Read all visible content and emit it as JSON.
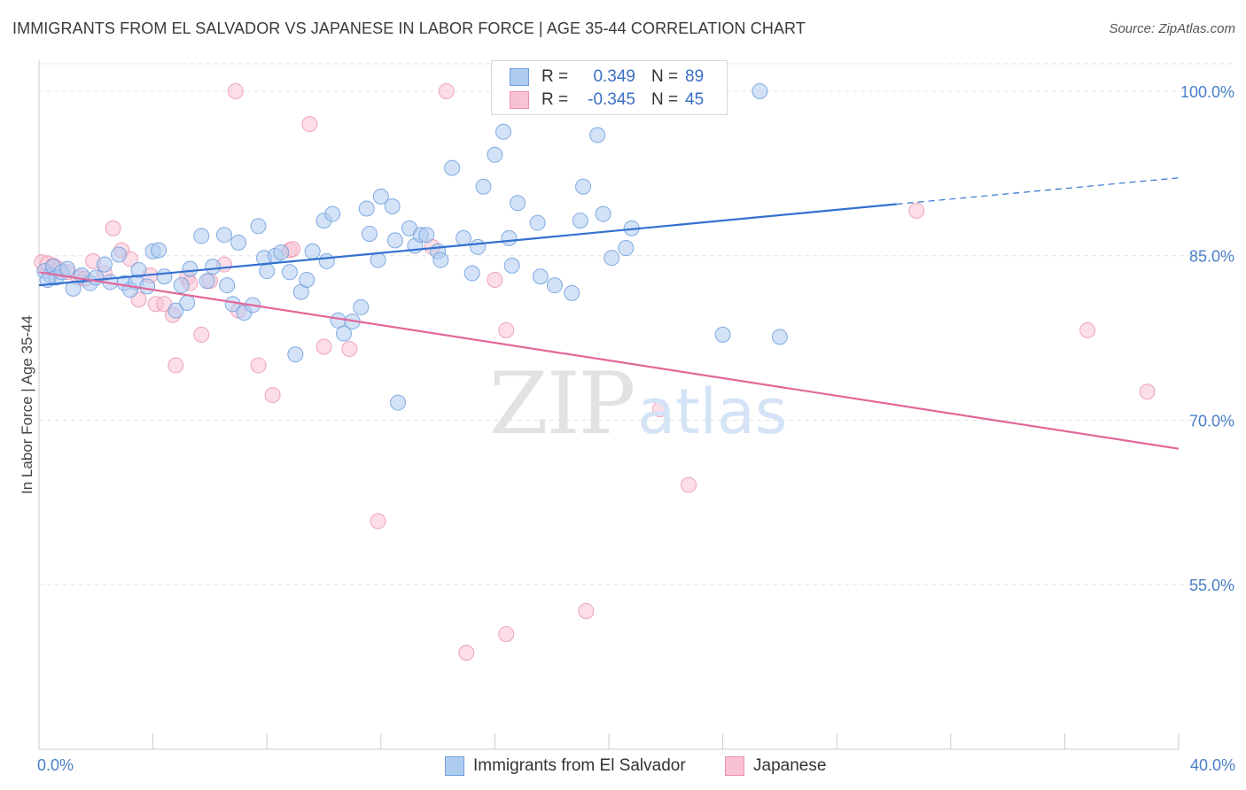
{
  "title": "IMMIGRANTS FROM EL SALVADOR VS JAPANESE IN LABOR FORCE | AGE 35-44 CORRELATION CHART",
  "source": "Source: ZipAtlas.com",
  "watermark": {
    "zip": "ZIP",
    "atlas": "atlas"
  },
  "legend": {
    "rows": [
      {
        "r_label": "R =",
        "r_value": "0.349",
        "n_label": "N =",
        "n_value": "89"
      },
      {
        "r_label": "R =",
        "r_value": "-0.345",
        "n_label": "N =",
        "n_value": "45"
      }
    ]
  },
  "bottom_legend": {
    "blue": "Immigrants from El Salvador",
    "pink": "Japanese"
  },
  "colors": {
    "blue_fill": "#aecbf0",
    "blue_stroke": "#6f9fdc",
    "blue_line": "#3371d0",
    "pink_fill": "#f8c2d4",
    "pink_stroke": "#ec8fae",
    "pink_line": "#e2679a",
    "grid": "#e3e3e3",
    "tick_label": "#4a7fc8"
  },
  "chart_data": {
    "type": "scatter",
    "title": "IMMIGRANTS FROM EL SALVADOR VS JAPANESE IN LABOR FORCE | AGE 35-44 CORRELATION CHART",
    "xlabel": "",
    "ylabel": "In Labor Force | Age 35-44",
    "xlim": [
      0,
      40
    ],
    "ylim": [
      40,
      102.5
    ],
    "y_ticks": [
      55,
      70,
      85,
      100
    ],
    "y_tick_labels": [
      "55.0%",
      "70.0%",
      "85.0%",
      "100.0%"
    ],
    "x_tick_labels": [
      "0.0%",
      "40.0%"
    ],
    "grid": true,
    "legend_position": "top-center",
    "series": [
      {
        "name": "Immigrants from El Salvador",
        "color": "#6f9fdc",
        "trend": {
          "x": [
            0,
            30.1
          ],
          "y": [
            82.3,
            89.7
          ],
          "dashed_to": {
            "x": 40,
            "y": 92.1
          }
        },
        "points": [
          [
            0.2,
            83.6
          ],
          [
            0.4,
            83.2
          ],
          [
            0.5,
            84.0
          ],
          [
            0.6,
            83.0
          ],
          [
            0.8,
            83.5
          ],
          [
            1.0,
            83.8
          ],
          [
            1.2,
            82.0
          ],
          [
            1.5,
            83.2
          ],
          [
            1.8,
            82.5
          ],
          [
            2.0,
            83.0
          ],
          [
            2.3,
            84.2
          ],
          [
            2.5,
            82.6
          ],
          [
            2.8,
            85.1
          ],
          [
            3.0,
            82.5
          ],
          [
            3.2,
            81.9
          ],
          [
            3.4,
            82.6
          ],
          [
            3.5,
            83.7
          ],
          [
            3.8,
            82.2
          ],
          [
            4.0,
            85.4
          ],
          [
            4.2,
            85.5
          ],
          [
            4.4,
            83.1
          ],
          [
            4.8,
            80.0
          ],
          [
            5.0,
            82.3
          ],
          [
            5.2,
            80.7
          ],
          [
            5.3,
            83.8
          ],
          [
            5.7,
            86.8
          ],
          [
            5.9,
            82.7
          ],
          [
            6.1,
            84.0
          ],
          [
            6.5,
            86.9
          ],
          [
            6.6,
            82.3
          ],
          [
            6.8,
            80.6
          ],
          [
            7.0,
            86.2
          ],
          [
            7.2,
            79.8
          ],
          [
            7.5,
            80.5
          ],
          [
            7.7,
            87.7
          ],
          [
            7.9,
            84.8
          ],
          [
            8.0,
            83.6
          ],
          [
            8.3,
            85.0
          ],
          [
            8.5,
            85.3
          ],
          [
            8.8,
            83.5
          ],
          [
            9.0,
            76.0
          ],
          [
            9.2,
            81.7
          ],
          [
            9.4,
            82.8
          ],
          [
            9.6,
            85.4
          ],
          [
            10.0,
            88.2
          ],
          [
            10.1,
            84.5
          ],
          [
            10.3,
            88.8
          ],
          [
            10.5,
            79.1
          ],
          [
            10.7,
            77.9
          ],
          [
            11.0,
            79.0
          ],
          [
            11.3,
            80.3
          ],
          [
            11.5,
            89.3
          ],
          [
            11.6,
            87.0
          ],
          [
            11.9,
            84.6
          ],
          [
            12.0,
            90.4
          ],
          [
            12.4,
            89.5
          ],
          [
            12.5,
            86.4
          ],
          [
            12.6,
            71.6
          ],
          [
            13.0,
            87.5
          ],
          [
            13.2,
            85.9
          ],
          [
            13.4,
            86.9
          ],
          [
            13.6,
            86.9
          ],
          [
            14.0,
            85.4
          ],
          [
            14.1,
            84.6
          ],
          [
            14.5,
            93.0
          ],
          [
            14.9,
            86.6
          ],
          [
            15.2,
            83.4
          ],
          [
            15.4,
            85.8
          ],
          [
            15.6,
            91.3
          ],
          [
            16.0,
            94.2
          ],
          [
            16.3,
            96.3
          ],
          [
            16.5,
            86.6
          ],
          [
            16.6,
            84.1
          ],
          [
            16.8,
            89.8
          ],
          [
            17.5,
            88.0
          ],
          [
            17.6,
            83.1
          ],
          [
            18.1,
            82.3
          ],
          [
            18.7,
            81.6
          ],
          [
            19.0,
            88.2
          ],
          [
            19.1,
            91.3
          ],
          [
            19.6,
            96.0
          ],
          [
            19.8,
            88.8
          ],
          [
            20.1,
            84.8
          ],
          [
            20.6,
            85.7
          ],
          [
            20.8,
            87.5
          ],
          [
            24.0,
            77.8
          ],
          [
            25.3,
            100.0
          ],
          [
            26.0,
            77.6
          ],
          [
            0.3,
            82.8
          ]
        ]
      },
      {
        "name": "Japanese",
        "color": "#ec8fae",
        "trend": {
          "x": [
            0,
            40
          ],
          "y": [
            83.5,
            67.4
          ]
        },
        "points": [
          [
            0.1,
            84.4
          ],
          [
            0.3,
            84.3
          ],
          [
            0.5,
            84.1
          ],
          [
            0.7,
            83.8
          ],
          [
            1.0,
            83.5
          ],
          [
            1.4,
            83.0
          ],
          [
            1.6,
            82.9
          ],
          [
            1.9,
            84.5
          ],
          [
            2.3,
            83.4
          ],
          [
            2.6,
            87.5
          ],
          [
            2.9,
            85.5
          ],
          [
            3.2,
            84.7
          ],
          [
            3.5,
            81.0
          ],
          [
            3.9,
            83.2
          ],
          [
            4.1,
            80.6
          ],
          [
            4.4,
            80.6
          ],
          [
            4.7,
            79.6
          ],
          [
            4.8,
            75.0
          ],
          [
            5.2,
            83.0
          ],
          [
            5.3,
            82.5
          ],
          [
            5.7,
            77.8
          ],
          [
            6.0,
            82.7
          ],
          [
            6.5,
            84.2
          ],
          [
            7.0,
            80.0
          ],
          [
            7.7,
            75.0
          ],
          [
            8.2,
            72.3
          ],
          [
            8.8,
            85.5
          ],
          [
            8.9,
            85.6
          ],
          [
            9.5,
            97.0
          ],
          [
            10.0,
            76.7
          ],
          [
            10.9,
            76.5
          ],
          [
            11.9,
            60.8
          ],
          [
            13.8,
            85.8
          ],
          [
            14.3,
            100.0
          ],
          [
            15.0,
            48.8
          ],
          [
            16.0,
            82.8
          ],
          [
            16.4,
            50.5
          ],
          [
            16.4,
            78.2
          ],
          [
            19.2,
            52.6
          ],
          [
            21.8,
            71.0
          ],
          [
            22.8,
            64.1
          ],
          [
            30.8,
            89.1
          ],
          [
            36.8,
            78.2
          ],
          [
            38.9,
            72.6
          ],
          [
            6.9,
            100.0
          ]
        ]
      }
    ]
  }
}
